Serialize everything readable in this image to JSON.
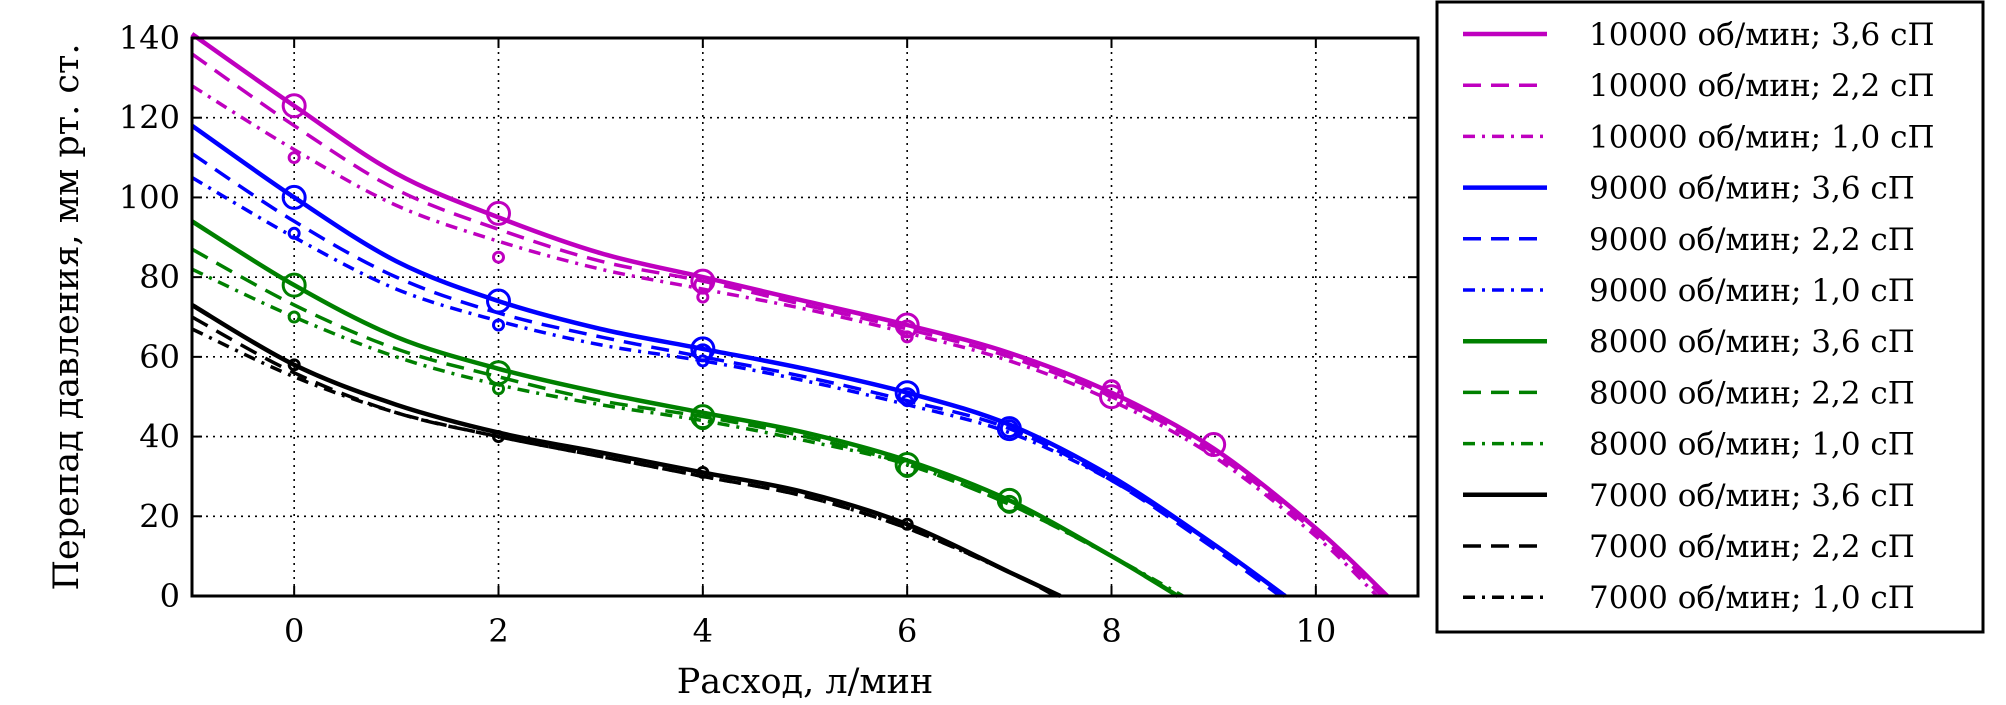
{
  "chart_data": {
    "type": "line",
    "xlabel": "Расход, л/мин",
    "ylabel": "Перепад давления, мм рт. ст.",
    "xlim": [
      -1,
      11
    ],
    "ylim": [
      0,
      140
    ],
    "x_ticks": [
      "0",
      "2",
      "4",
      "6",
      "8",
      "10"
    ],
    "y_ticks": [
      "0",
      "20",
      "40",
      "60",
      "80",
      "100",
      "120",
      "140"
    ],
    "grid": true,
    "legend_position": "right",
    "colors": {
      "magenta": "#bf00bf",
      "blue": "#0000ff",
      "green": "#008000",
      "black": "#000000"
    },
    "series": [
      {
        "name": "10000 об/мин; 3,6 сП",
        "color": "#bf00bf",
        "style": "solid",
        "x": [
          -1,
          0,
          1,
          2,
          3,
          4,
          5,
          6,
          7,
          8,
          9,
          10,
          10.7
        ],
        "y": [
          141,
          123,
          106,
          95,
          86,
          80,
          74,
          68,
          61,
          51,
          37,
          17,
          0
        ]
      },
      {
        "name": "10000 об/мин; 2,2 сП",
        "color": "#bf00bf",
        "style": "dashed",
        "x": [
          -1,
          0,
          1,
          2,
          3,
          4,
          5,
          6,
          7,
          8,
          9,
          10,
          10.65
        ],
        "y": [
          136,
          118,
          102,
          92,
          84,
          79,
          73,
          67,
          60,
          50,
          36,
          16,
          0
        ]
      },
      {
        "name": "10000 об/мин; 1,0 сП",
        "color": "#bf00bf",
        "style": "dashdot",
        "x": [
          -1,
          0,
          1,
          2,
          3,
          4,
          5,
          6,
          7,
          8,
          9,
          10,
          10.6
        ],
        "y": [
          128,
          112,
          98,
          89,
          82,
          77,
          72,
          66,
          59,
          49,
          35,
          15,
          0
        ]
      },
      {
        "name": "9000 об/мин; 3,6 сП",
        "color": "#0000ff",
        "style": "solid",
        "x": [
          -1,
          0,
          1,
          2,
          3,
          4,
          5,
          6,
          7,
          8,
          9,
          9.7
        ],
        "y": [
          118,
          100,
          84,
          74,
          67,
          62,
          57,
          51,
          43,
          30,
          13,
          0
        ]
      },
      {
        "name": "9000 об/мин; 2,2 сП",
        "color": "#0000ff",
        "style": "dashed",
        "x": [
          -1,
          0,
          1,
          2,
          3,
          4,
          5,
          6,
          7,
          8,
          9,
          9.65
        ],
        "y": [
          111,
          94,
          80,
          71,
          65,
          60,
          55,
          49,
          42,
          29,
          12,
          0
        ]
      },
      {
        "name": "9000 об/мин; 1,0 сП",
        "color": "#0000ff",
        "style": "dashdot",
        "x": [
          -1,
          0,
          1,
          2,
          3,
          4,
          5,
          6,
          7,
          8,
          9,
          9.7
        ],
        "y": [
          105,
          90,
          77,
          69,
          63,
          59,
          54,
          48,
          41,
          29,
          13,
          0
        ]
      },
      {
        "name": "8000 об/мин; 3,6 сП",
        "color": "#008000",
        "style": "solid",
        "x": [
          -1,
          0,
          1,
          2,
          3,
          4,
          5,
          6,
          7,
          8,
          8.65
        ],
        "y": [
          94,
          78,
          65,
          57,
          51,
          46,
          41,
          34,
          24,
          10,
          0
        ]
      },
      {
        "name": "8000 об/мин; 2,2 сП",
        "color": "#008000",
        "style": "dashed",
        "x": [
          -1,
          0,
          1,
          2,
          3,
          4,
          5,
          6,
          7,
          8,
          8.65
        ],
        "y": [
          87,
          73,
          62,
          55,
          49,
          45,
          40,
          33,
          23,
          10,
          0
        ]
      },
      {
        "name": "8000 об/мин; 1,0 сП",
        "color": "#008000",
        "style": "dashdot",
        "x": [
          -1,
          0,
          1,
          2,
          3,
          4,
          5,
          6,
          7,
          8,
          8.7
        ],
        "y": [
          82,
          70,
          60,
          53,
          48,
          44,
          39,
          33,
          23,
          10,
          0
        ]
      },
      {
        "name": "7000 об/мин; 3,6 сП",
        "color": "#000000",
        "style": "solid",
        "x": [
          -1,
          0,
          1,
          2,
          3,
          4,
          5,
          6,
          7,
          7.5
        ],
        "y": [
          73,
          58,
          48,
          41,
          36,
          31,
          26,
          18,
          6,
          0
        ]
      },
      {
        "name": "7000 об/мин; 2,2 сП",
        "color": "#000000",
        "style": "dashed",
        "x": [
          -1,
          0,
          1,
          2,
          3,
          4,
          5,
          6,
          7,
          7.45
        ],
        "y": [
          70,
          56,
          46,
          40,
          35,
          30,
          25,
          17,
          6,
          0
        ]
      },
      {
        "name": "7000 об/мин; 1,0 сП",
        "color": "#000000",
        "style": "dashdot",
        "x": [
          -1,
          0,
          1,
          2,
          3,
          4,
          5,
          6,
          7,
          7.5
        ],
        "y": [
          67,
          55,
          46,
          40,
          35,
          30,
          25,
          17,
          6,
          0
        ]
      }
    ],
    "measured_points": [
      {
        "series": "10000 об/мин; 3,6 сП",
        "marker": "large",
        "x": [
          0,
          2,
          4,
          6,
          8,
          9
        ],
        "y": [
          123,
          96,
          79,
          68,
          50,
          38
        ]
      },
      {
        "series": "10000 об/мин; 2,2 сП",
        "marker": "medium",
        "x": [
          4,
          6,
          8
        ],
        "y": [
          78,
          67,
          52
        ]
      },
      {
        "series": "10000 об/мин; 1,0 сП",
        "marker": "small",
        "x": [
          0,
          2,
          4,
          6
        ],
        "y": [
          110,
          85,
          75,
          65
        ]
      },
      {
        "series": "9000 об/мин; 3,6 сП",
        "marker": "large",
        "x": [
          0,
          2,
          4,
          6,
          7
        ],
        "y": [
          100,
          74,
          62,
          51,
          42
        ]
      },
      {
        "series": "9000 об/мин; 2,2 сП",
        "marker": "medium",
        "x": [
          4,
          6,
          7
        ],
        "y": [
          61,
          50,
          42
        ]
      },
      {
        "series": "9000 об/мин; 1,0 сП",
        "marker": "small",
        "x": [
          0,
          2,
          4,
          6
        ],
        "y": [
          91,
          68,
          59,
          49
        ]
      },
      {
        "series": "8000 об/мин; 3,6 сП",
        "marker": "large",
        "x": [
          0,
          2,
          4,
          6,
          7
        ],
        "y": [
          78,
          56,
          45,
          33,
          24
        ]
      },
      {
        "series": "8000 об/мин; 2,2 сП",
        "marker": "medium",
        "x": [
          4,
          6,
          7
        ],
        "y": [
          44,
          32,
          23
        ]
      },
      {
        "series": "8000 об/мин; 1,0 сП",
        "marker": "small",
        "x": [
          0,
          2
        ],
        "y": [
          70,
          52
        ]
      },
      {
        "series": "7000 об/мин; 3,6 сП",
        "marker": "small",
        "x": [
          0,
          2,
          4,
          6
        ],
        "y": [
          58,
          40,
          31,
          18
        ]
      }
    ]
  }
}
